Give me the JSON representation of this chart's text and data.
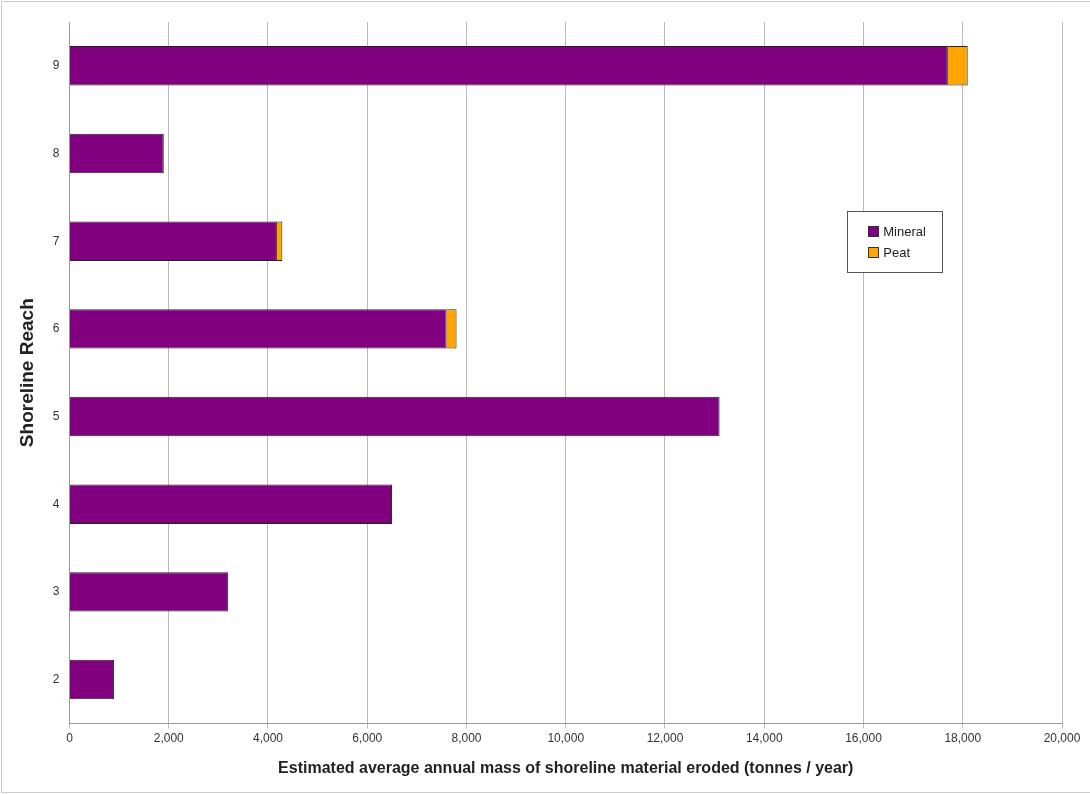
{
  "chart_data": {
    "type": "bar",
    "orientation": "horizontal",
    "stacked": true,
    "xlabel": "Estimated average annual mass of shoreline material eroded (tonnes / year)",
    "ylabel": "Shoreline Reach",
    "categories": [
      "9",
      "8",
      "7",
      "6",
      "5",
      "4",
      "3",
      "2"
    ],
    "series": [
      {
        "name": "Mineral",
        "color": "#800080",
        "values": [
          17700,
          1900,
          4180,
          7600,
          13100,
          6500,
          3200,
          900
        ]
      },
      {
        "name": "Peat",
        "color": "#ffa500",
        "values": [
          400,
          null,
          110,
          200,
          null,
          null,
          null,
          null
        ]
      }
    ],
    "xlim": [
      0,
      20000
    ],
    "xticks": [
      {
        "value": 0,
        "label": "0"
      },
      {
        "value": 2000,
        "label": "2,000"
      },
      {
        "value": 4000,
        "label": "4,000"
      },
      {
        "value": 6000,
        "label": "6,000"
      },
      {
        "value": 8000,
        "label": "8,000"
      },
      {
        "value": 10000,
        "label": "10,000"
      },
      {
        "value": 12000,
        "label": "12,000"
      },
      {
        "value": 14000,
        "label": "14,000"
      },
      {
        "value": 16000,
        "label": "16,000"
      },
      {
        "value": 18000,
        "label": "18,000"
      },
      {
        "value": 20000,
        "label": "20,000"
      }
    ],
    "grid": "x",
    "legend": "right"
  }
}
